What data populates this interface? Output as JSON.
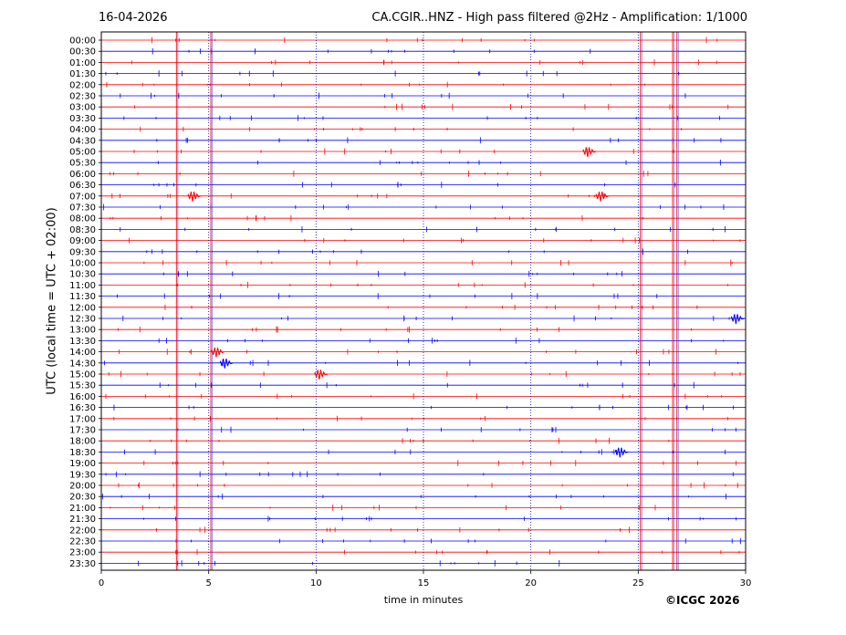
{
  "header": {
    "date": "16-04-2026",
    "title": "CA.CGIR..HNZ - High pass filtered @2Hz - Amplification: 1/1000"
  },
  "footer": {
    "copyright": "©ICGC 2026"
  },
  "colors": {
    "red_trace": "#ff0000",
    "blue_trace": "#0000ff",
    "axis": "#000000",
    "grid": "#0000aa"
  },
  "chart_data": {
    "type": "line",
    "title": "CA.CGIR..HNZ - High pass filtered @2Hz - Amplification: 1/1000",
    "xlabel": "time in minutes",
    "ylabel": "UTC (local time = UTC + 02:00)",
    "xlim": [
      0,
      30
    ],
    "x_ticks": [
      "0",
      "5",
      "10",
      "15",
      "20",
      "25",
      "30"
    ],
    "grid": "vertical dotted lines at each x tick",
    "row_labels": [
      "00:00",
      "00:30",
      "01:00",
      "01:30",
      "02:00",
      "02:30",
      "03:00",
      "03:30",
      "04:00",
      "04:30",
      "05:00",
      "05:30",
      "06:00",
      "06:30",
      "07:00",
      "07:30",
      "08:00",
      "08:30",
      "09:00",
      "09:30",
      "10:00",
      "10:30",
      "11:00",
      "11:30",
      "12:00",
      "12:30",
      "13:00",
      "13:30",
      "14:00",
      "14:30",
      "15:00",
      "15:30",
      "16:00",
      "16:30",
      "17:00",
      "17:30",
      "18:00",
      "18:30",
      "19:00",
      "19:30",
      "20:00",
      "20:30",
      "21:00",
      "21:30",
      "22:00",
      "22:30",
      "23:00",
      "23:30"
    ],
    "row_colors": "alternating red (even rows) and blue (odd rows)",
    "vertical_spikes_minutes": [
      3.5,
      5.1,
      25.1,
      26.6,
      26.8
    ],
    "events": [
      {
        "row": "05:00",
        "minute": 22.7
      },
      {
        "row": "07:00",
        "minute": 4.3
      },
      {
        "row": "07:00",
        "minute": 23.3
      },
      {
        "row": "12:30",
        "minute": 29.6
      },
      {
        "row": "14:00",
        "minute": 5.4
      },
      {
        "row": "14:30",
        "minute": 5.8
      },
      {
        "row": "15:00",
        "minute": 10.2
      },
      {
        "row": "18:30",
        "minute": 24.2
      }
    ]
  }
}
